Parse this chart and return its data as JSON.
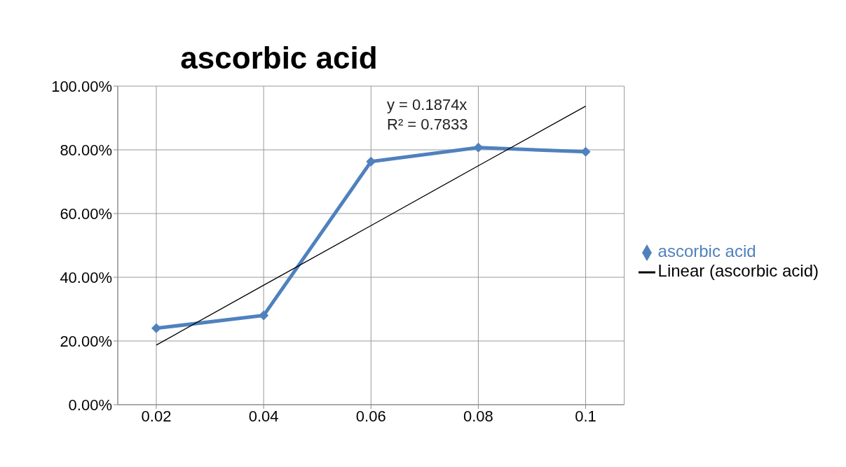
{
  "chart_data": {
    "type": "line",
    "title": "ascorbic acid",
    "categories": [
      "0.02",
      "0.04",
      "0.06",
      "0.08",
      "0.1"
    ],
    "series": [
      {
        "name": "ascorbic acid",
        "color": "#4f81bd",
        "values": [
          24,
          28,
          76.3,
          80.7,
          79.4
        ],
        "marker": "diamond"
      },
      {
        "name": "Linear (ascorbic acid)",
        "color": "#000000",
        "type": "line",
        "x": [
          "0.02",
          "0.04",
          "0.06",
          "0.08",
          "0.1"
        ],
        "values": [
          18.7,
          37.5,
          56.2,
          75,
          93.7
        ],
        "marker": "none"
      }
    ],
    "ylim": [
      0,
      100
    ],
    "yticks": [
      {
        "value": 0,
        "label": "0.00%"
      },
      {
        "value": 20,
        "label": "20.00%"
      },
      {
        "value": 40,
        "label": "40.00%"
      },
      {
        "value": 60,
        "label": "60.00%"
      },
      {
        "value": 80,
        "label": "80.00%"
      },
      {
        "value": 100,
        "label": "100.00%"
      }
    ],
    "annotations": [
      "y = 0.1874x",
      "R² = 0.7833"
    ],
    "grid": true,
    "legend": "right"
  }
}
